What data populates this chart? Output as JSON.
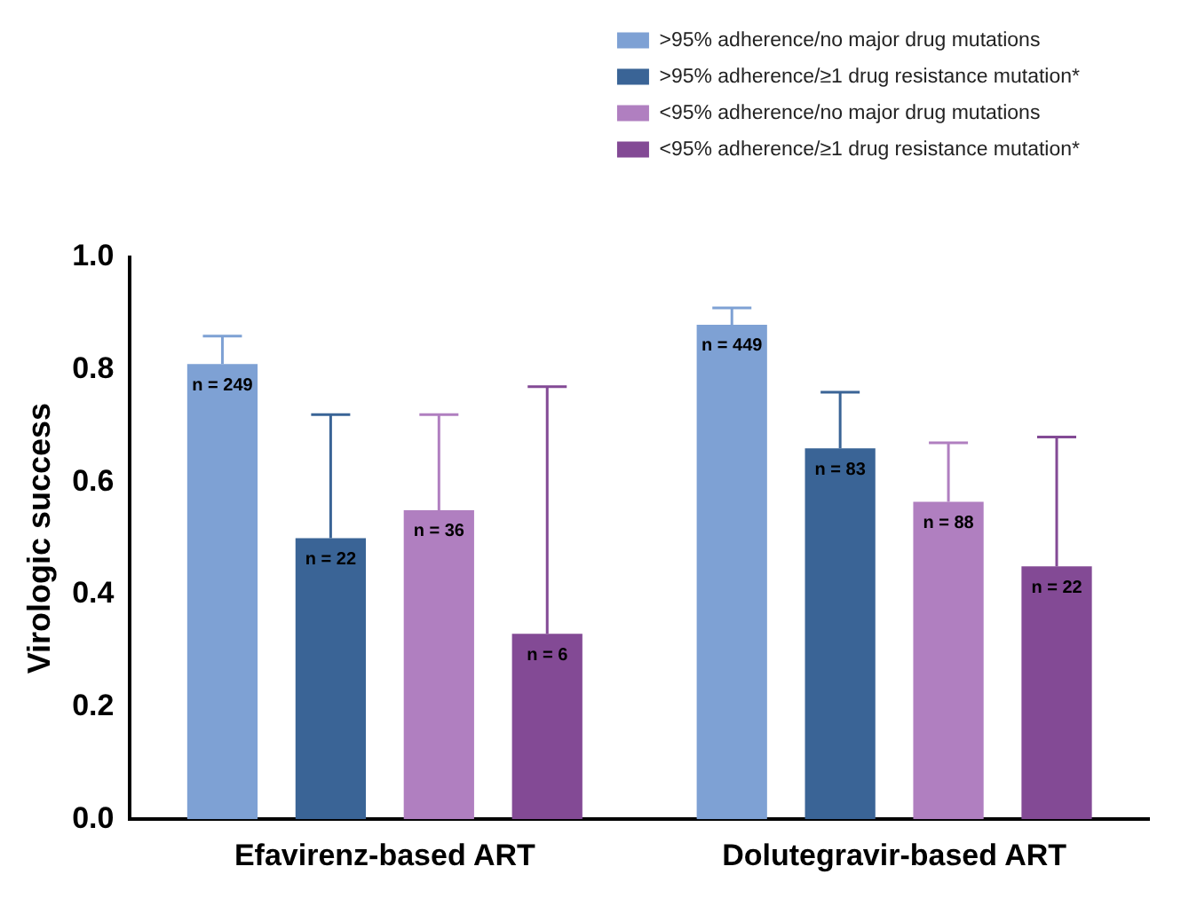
{
  "chart_data": {
    "type": "bar",
    "ylabel": "Virologic success",
    "categories": [
      "Efavirenz-based ART",
      "Dolutegravir-based ART"
    ],
    "ylim": [
      0,
      1
    ],
    "yticks": [
      {
        "value": 0,
        "label": "0.0"
      },
      {
        "value": 0.2,
        "label": "0.2"
      },
      {
        "value": 0.4,
        "label": "0.4"
      },
      {
        "value": 0.6,
        "label": "0.6"
      },
      {
        "value": 0.8,
        "label": "0.8"
      },
      {
        "value": 1,
        "label": "1.0"
      }
    ],
    "grid": false,
    "legend": "top right",
    "series": [
      {
        "name": ">95% adherence/no major drug mutations",
        "color": "#7ea1d4",
        "values": [
          0.81,
          0.88
        ],
        "errors": [
          [
            0.81,
            0.86
          ],
          [
            0.88,
            0.91
          ]
        ]
      },
      {
        "name": ">95% adherence/≥1 drug resistance mutation*",
        "color": "#3a6496",
        "values": [
          0.5,
          0.66
        ],
        "errors": [
          [
            0.5,
            0.72
          ],
          [
            0.66,
            0.76
          ]
        ]
      },
      {
        "name": "<95% adherence/no major drug mutations",
        "color": "#b07fc0",
        "values": [
          0.55,
          0.565
        ],
        "errors": [
          [
            0.55,
            0.72
          ],
          [
            0.565,
            0.67
          ]
        ]
      },
      {
        "name": "<95% adherence/≥1 drug resistance mutation*",
        "color": "#834a95",
        "values": [
          0.33,
          0.45
        ],
        "errors": [
          [
            0.33,
            0.77
          ],
          [
            0.45,
            0.68
          ]
        ]
      }
    ],
    "annotations": [
      "n = 249",
      "n = 22",
      "n = 36",
      "n = 6",
      "n = 449",
      "n = 83",
      "n = 88",
      "n = 22"
    ]
  }
}
